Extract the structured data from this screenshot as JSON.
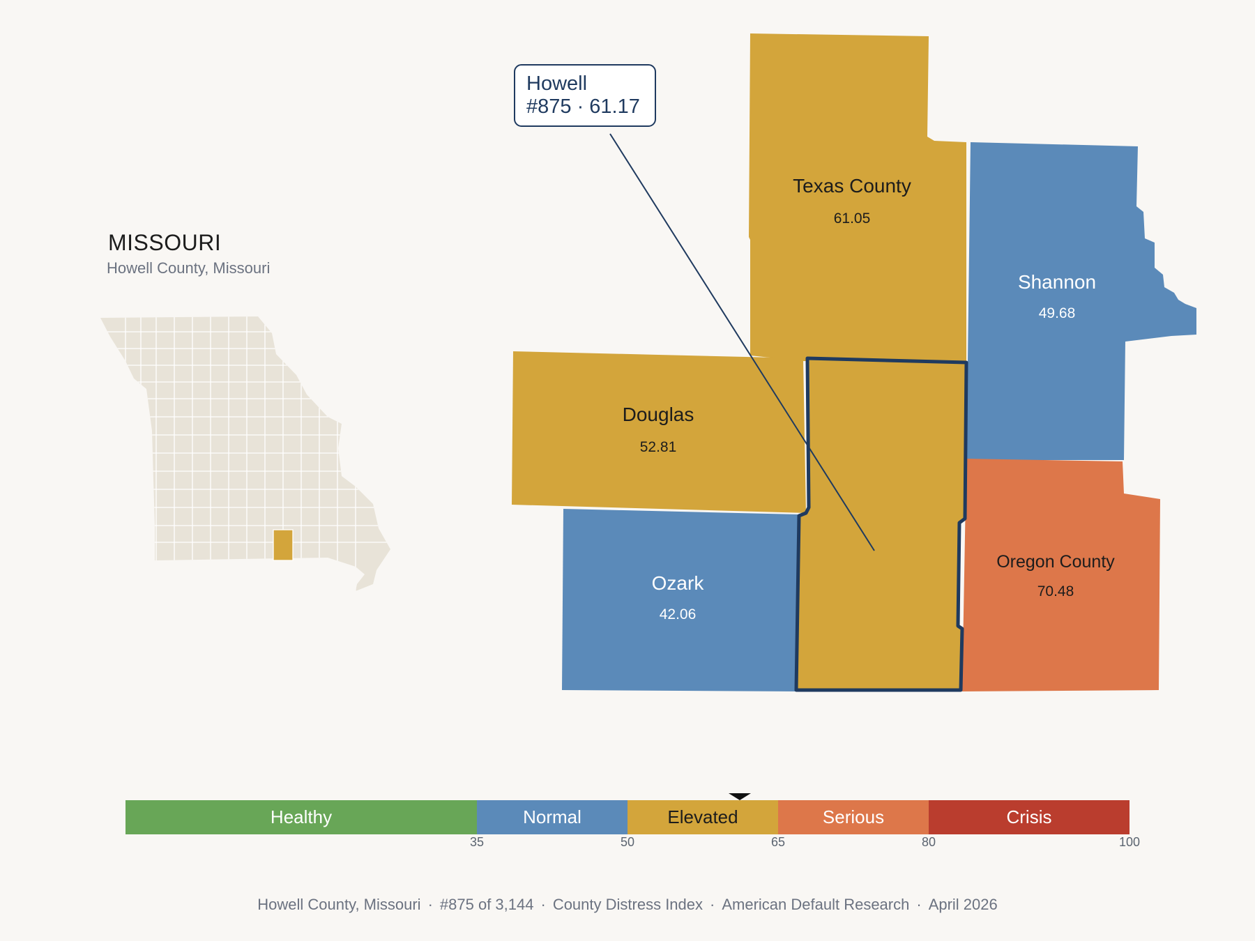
{
  "state": {
    "title": "MISSOURI",
    "subtitle": "Howell County, Missouri"
  },
  "callout": {
    "name": "Howell",
    "detail": "#875 · 61.17"
  },
  "counties": [
    {
      "name": "Texas County",
      "value": "61.05",
      "category": "Elevated"
    },
    {
      "name": "Shannon",
      "value": "49.68",
      "category": "Normal"
    },
    {
      "name": "Douglas",
      "value": "52.81",
      "category": "Elevated"
    },
    {
      "name": "Ozark",
      "value": "42.06",
      "category": "Normal"
    },
    {
      "name": "Oregon County",
      "value": "70.48",
      "category": "Serious"
    },
    {
      "name": "Howell",
      "value": "61.17",
      "category": "Elevated",
      "highlighted": true
    }
  ],
  "legend": {
    "segments": [
      {
        "label": "Healthy",
        "color": "#68a657",
        "from": 0,
        "to": 35
      },
      {
        "label": "Normal",
        "color": "#5b8ab9",
        "from": 35,
        "to": 50
      },
      {
        "label": "Elevated",
        "color": "#d3a53b",
        "from": 50,
        "to": 65
      },
      {
        "label": "Serious",
        "color": "#dd774a",
        "from": 65,
        "to": 80
      },
      {
        "label": "Crisis",
        "color": "#ba3d2e",
        "from": 80,
        "to": 100
      }
    ],
    "ticks": [
      "35",
      "50",
      "65",
      "80",
      "100"
    ],
    "marker_value": 61.17
  },
  "colors": {
    "highlight_outline": "#1f3a5f",
    "base_county": "#e8e3d8",
    "background": "#f9f7f4"
  },
  "footer": {
    "county": "Howell County, Missouri",
    "rank": "#875 of 3,144",
    "index": "County Distress Index",
    "source": "American Default Research",
    "date": "April 2026",
    "separator": "·"
  }
}
